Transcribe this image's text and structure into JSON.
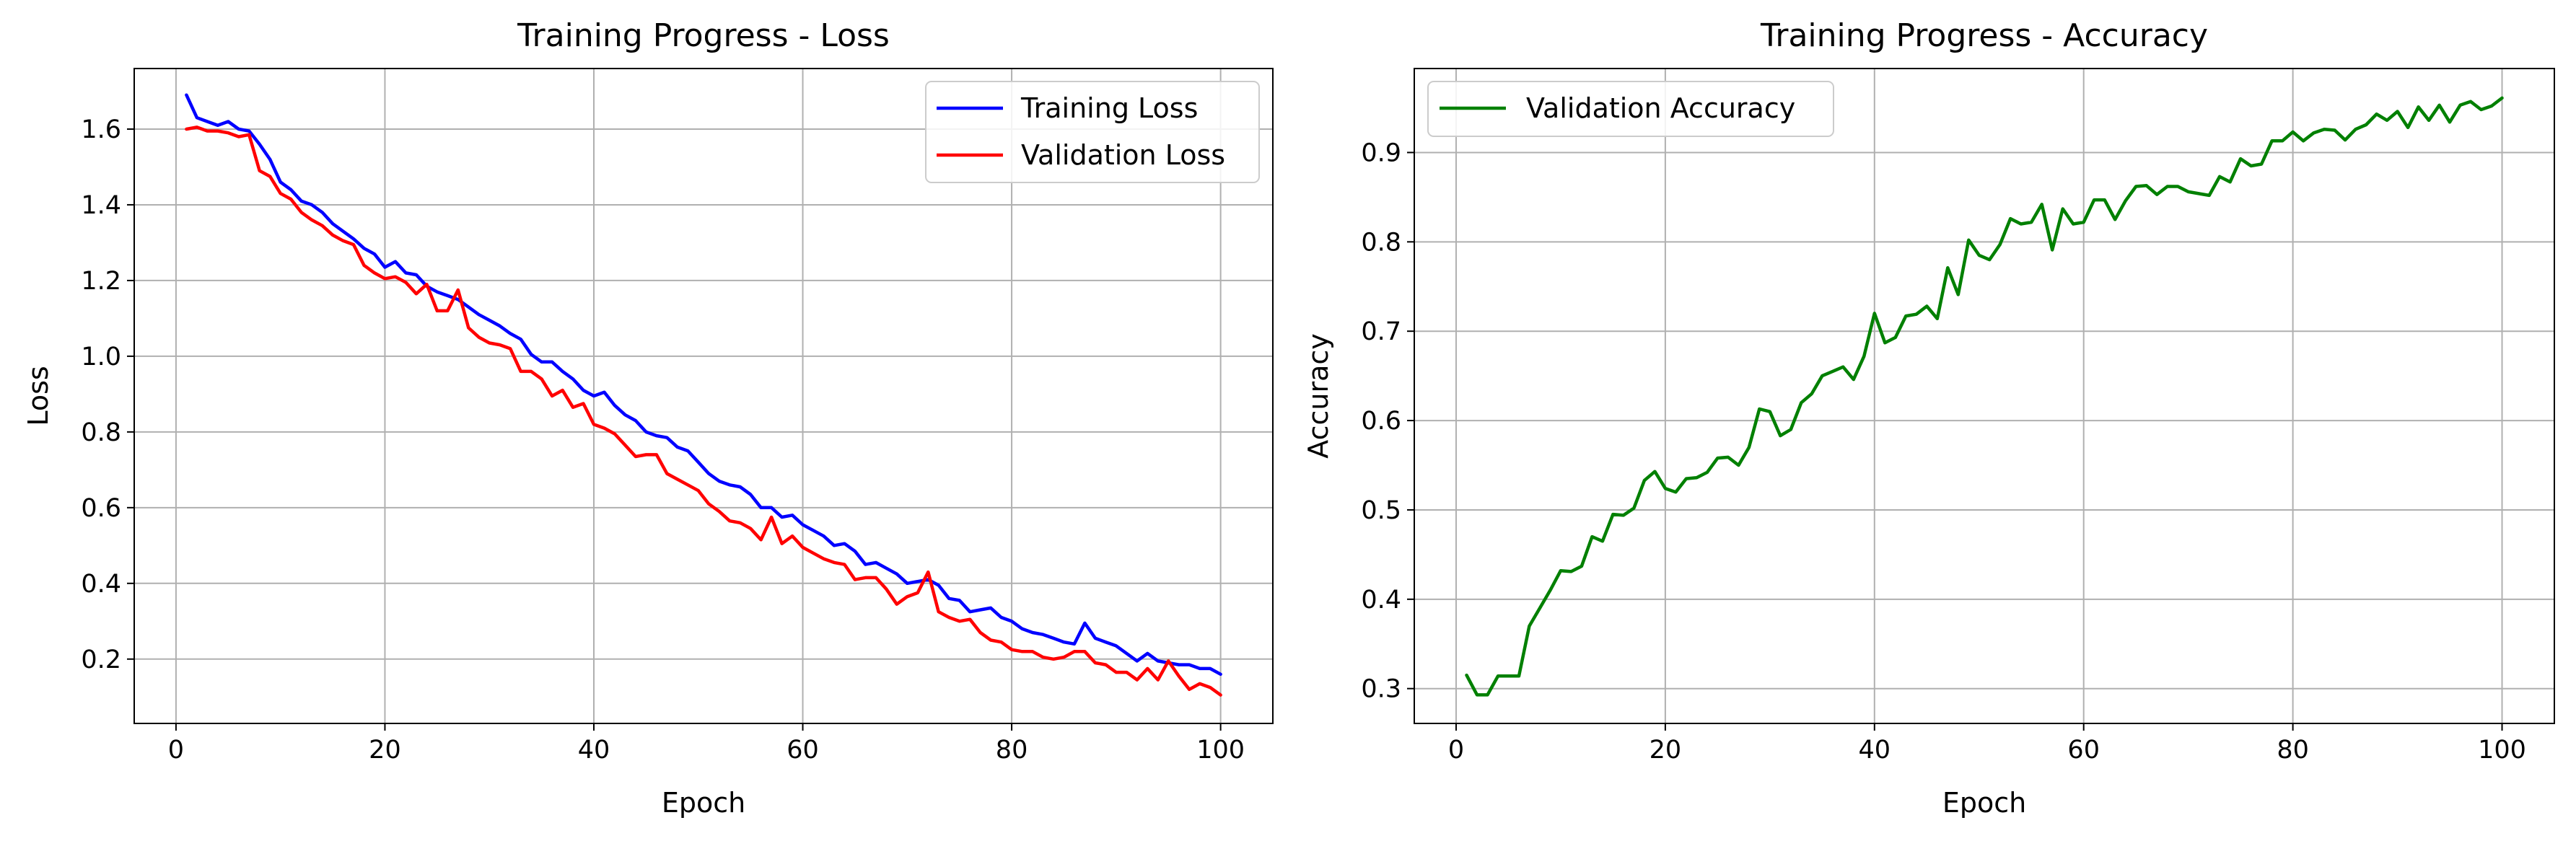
{
  "chart_data": [
    {
      "type": "line",
      "title": "Training Progress - Loss",
      "xlabel": "Epoch",
      "ylabel": "Loss",
      "xlim": [
        -4.0,
        105.0
      ],
      "ylim": [
        0.03,
        1.76
      ],
      "xticks": [
        0,
        20,
        40,
        60,
        80,
        100
      ],
      "yticks": [
        0.2,
        0.4,
        0.6,
        0.8,
        1.0,
        1.2,
        1.4,
        1.6
      ],
      "xtick_labels": [
        "0",
        "20",
        "40",
        "60",
        "80",
        "100"
      ],
      "ytick_labels": [
        "0.2",
        "0.4",
        "0.6",
        "0.8",
        "1.0",
        "1.2",
        "1.4",
        "1.6"
      ],
      "grid": true,
      "legend_position": "upper right",
      "x": [
        1,
        2,
        3,
        4,
        5,
        6,
        7,
        8,
        9,
        10,
        11,
        12,
        13,
        14,
        15,
        16,
        17,
        18,
        19,
        20,
        21,
        22,
        23,
        24,
        25,
        26,
        27,
        28,
        29,
        30,
        31,
        32,
        33,
        34,
        35,
        36,
        37,
        38,
        39,
        40,
        41,
        42,
        43,
        44,
        45,
        46,
        47,
        48,
        49,
        50,
        51,
        52,
        53,
        54,
        55,
        56,
        57,
        58,
        59,
        60,
        61,
        62,
        63,
        64,
        65,
        66,
        67,
        68,
        69,
        70,
        71,
        72,
        73,
        74,
        75,
        76,
        77,
        78,
        79,
        80,
        81,
        82,
        83,
        84,
        85,
        86,
        87,
        88,
        89,
        90,
        91,
        92,
        93,
        94,
        95,
        96,
        97,
        98,
        99,
        100
      ],
      "series": [
        {
          "name": "Training Loss",
          "color": "#0000ff",
          "values": [
            1.69,
            1.63,
            1.62,
            1.61,
            1.62,
            1.6,
            1.595,
            1.56,
            1.52,
            1.46,
            1.44,
            1.41,
            1.4,
            1.38,
            1.35,
            1.33,
            1.31,
            1.285,
            1.27,
            1.235,
            1.25,
            1.22,
            1.215,
            1.185,
            1.17,
            1.16,
            1.15,
            1.13,
            1.11,
            1.095,
            1.08,
            1.06,
            1.045,
            1.005,
            0.985,
            0.985,
            0.96,
            0.94,
            0.91,
            0.895,
            0.905,
            0.87,
            0.845,
            0.83,
            0.8,
            0.79,
            0.785,
            0.76,
            0.75,
            0.72,
            0.69,
            0.67,
            0.66,
            0.655,
            0.635,
            0.6,
            0.6,
            0.575,
            0.58,
            0.555,
            0.54,
            0.525,
            0.5,
            0.505,
            0.485,
            0.45,
            0.455,
            0.44,
            0.425,
            0.4,
            0.405,
            0.41,
            0.395,
            0.36,
            0.355,
            0.325,
            0.33,
            0.335,
            0.31,
            0.3,
            0.28,
            0.27,
            0.265,
            0.255,
            0.245,
            0.24,
            0.295,
            0.255,
            0.245,
            0.235,
            0.215,
            0.195,
            0.215,
            0.195,
            0.19,
            0.185,
            0.185,
            0.175,
            0.175,
            0.16
          ]
        },
        {
          "name": "Validation Loss",
          "color": "#ff0000",
          "values": [
            1.6,
            1.605,
            1.595,
            1.595,
            1.59,
            1.58,
            1.585,
            1.49,
            1.475,
            1.43,
            1.415,
            1.38,
            1.36,
            1.345,
            1.32,
            1.305,
            1.295,
            1.24,
            1.22,
            1.205,
            1.21,
            1.195,
            1.165,
            1.19,
            1.12,
            1.12,
            1.175,
            1.075,
            1.05,
            1.035,
            1.03,
            1.02,
            0.96,
            0.96,
            0.94,
            0.895,
            0.91,
            0.865,
            0.875,
            0.82,
            0.81,
            0.795,
            0.765,
            0.735,
            0.74,
            0.74,
            0.69,
            0.675,
            0.66,
            0.645,
            0.61,
            0.59,
            0.565,
            0.56,
            0.545,
            0.515,
            0.575,
            0.505,
            0.525,
            0.495,
            0.48,
            0.465,
            0.455,
            0.45,
            0.41,
            0.415,
            0.415,
            0.385,
            0.345,
            0.365,
            0.375,
            0.43,
            0.325,
            0.31,
            0.3,
            0.305,
            0.27,
            0.25,
            0.245,
            0.225,
            0.22,
            0.22,
            0.205,
            0.2,
            0.205,
            0.22,
            0.22,
            0.19,
            0.185,
            0.165,
            0.165,
            0.145,
            0.175,
            0.145,
            0.195,
            0.155,
            0.12,
            0.135,
            0.125,
            0.105
          ]
        }
      ]
    },
    {
      "type": "line",
      "title": "Training Progress - Accuracy",
      "xlabel": "Epoch",
      "ylabel": "Accuracy",
      "xlim": [
        -4.0,
        105.0
      ],
      "ylim": [
        0.261,
        0.994
      ],
      "xticks": [
        0,
        20,
        40,
        60,
        80,
        100
      ],
      "yticks": [
        0.3,
        0.4,
        0.5,
        0.6,
        0.7,
        0.8,
        0.9
      ],
      "xtick_labels": [
        "0",
        "20",
        "40",
        "60",
        "80",
        "100"
      ],
      "ytick_labels": [
        "0.3",
        "0.4",
        "0.5",
        "0.6",
        "0.7",
        "0.8",
        "0.9"
      ],
      "grid": true,
      "legend_position": "upper left",
      "x": [
        1,
        2,
        3,
        4,
        5,
        6,
        7,
        8,
        9,
        10,
        11,
        12,
        13,
        14,
        15,
        16,
        17,
        18,
        19,
        20,
        21,
        22,
        23,
        24,
        25,
        26,
        27,
        28,
        29,
        30,
        31,
        32,
        33,
        34,
        35,
        36,
        37,
        38,
        39,
        40,
        41,
        42,
        43,
        44,
        45,
        46,
        47,
        48,
        49,
        50,
        51,
        52,
        53,
        54,
        55,
        56,
        57,
        58,
        59,
        60,
        61,
        62,
        63,
        64,
        65,
        66,
        67,
        68,
        69,
        70,
        71,
        72,
        73,
        74,
        75,
        76,
        77,
        78,
        79,
        80,
        81,
        82,
        83,
        84,
        85,
        86,
        87,
        88,
        89,
        90,
        91,
        92,
        93,
        94,
        95,
        96,
        97,
        98,
        99,
        100
      ],
      "series": [
        {
          "name": "Validation Accuracy",
          "color": "#008000",
          "values": [
            0.315,
            0.293,
            0.293,
            0.314,
            0.314,
            0.314,
            0.37,
            0.39,
            0.41,
            0.432,
            0.431,
            0.437,
            0.47,
            0.465,
            0.495,
            0.494,
            0.502,
            0.533,
            0.543,
            0.524,
            0.52,
            0.535,
            0.536,
            0.542,
            0.558,
            0.559,
            0.55,
            0.57,
            0.613,
            0.61,
            0.583,
            0.59,
            0.62,
            0.63,
            0.65,
            0.655,
            0.66,
            0.646,
            0.672,
            0.72,
            0.687,
            0.693,
            0.717,
            0.719,
            0.728,
            0.714,
            0.771,
            0.741,
            0.802,
            0.785,
            0.78,
            0.797,
            0.826,
            0.82,
            0.822,
            0.842,
            0.791,
            0.837,
            0.82,
            0.822,
            0.847,
            0.847,
            0.825,
            0.846,
            0.862,
            0.863,
            0.853,
            0.862,
            0.862,
            0.856,
            0.854,
            0.852,
            0.873,
            0.867,
            0.893,
            0.885,
            0.887,
            0.913,
            0.913,
            0.923,
            0.913,
            0.922,
            0.926,
            0.925,
            0.914,
            0.926,
            0.931,
            0.943,
            0.936,
            0.946,
            0.928,
            0.951,
            0.936,
            0.953,
            0.934,
            0.953,
            0.957,
            0.948,
            0.952,
            0.961
          ]
        }
      ]
    }
  ]
}
